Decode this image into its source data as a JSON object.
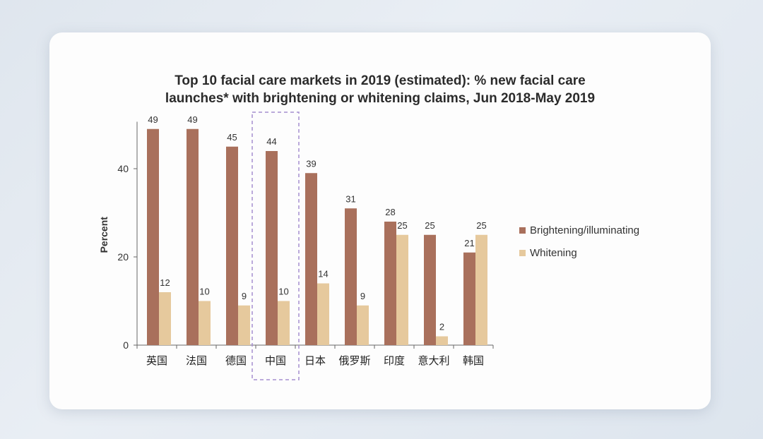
{
  "chart_data": {
    "type": "bar",
    "title_lines": [
      "Top 10 facial care markets in 2019 (estimated): % new facial care",
      "launches* with brightening or whitening claims, Jun 2018-May 2019"
    ],
    "ylabel": "Percent",
    "ylim": [
      0,
      50
    ],
    "yticks": [
      "0",
      "20",
      "40"
    ],
    "categories": [
      "英国",
      "法国",
      "德国",
      "中国",
      "日本",
      "俄罗斯",
      "印度",
      "意大利",
      "韩国"
    ],
    "highlighted_category": "中国",
    "legend_position": "right",
    "series": [
      {
        "name": "Brightening/illuminating",
        "color": "#a9705c",
        "values": [
          49,
          49,
          45,
          44,
          39,
          31,
          28,
          25,
          21
        ]
      },
      {
        "name": "Whitening",
        "color": "#e6c99d",
        "values": [
          12,
          10,
          9,
          10,
          14,
          9,
          25,
          2,
          25
        ]
      }
    ],
    "grid": false
  }
}
